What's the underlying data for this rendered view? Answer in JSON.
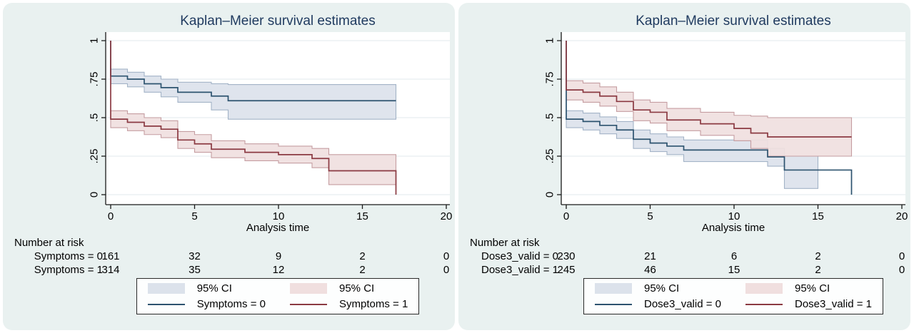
{
  "page": {
    "background": "#ffffff",
    "panel_background": "#e9f1f0",
    "plot_background": "#ffffff",
    "gridline_color": "#e6eef0",
    "axis_color": "#1a1a1a",
    "text_color": "#000000",
    "title_color": "#1f3a5f",
    "legend_border_color": "#2a2a2a",
    "legend_background": "#fdfefe"
  },
  "chart_data": [
    {
      "type": "line",
      "subtype": "kaplan-meier-step",
      "title": "Kaplan–Meier survival estimates",
      "xlabel": "Analysis time",
      "ylabel": "",
      "xlim": [
        0,
        20
      ],
      "ylim": [
        0,
        1
      ],
      "xticks": [
        0,
        5,
        10,
        15,
        20
      ],
      "yticks": [
        0,
        0.25,
        0.5,
        0.75,
        1
      ],
      "ytick_labels": [
        "0",
        ".25",
        ".5",
        ".75",
        "1"
      ],
      "grid": true,
      "legend_position": "below",
      "ci_label": "95% CI",
      "series": [
        {
          "name": "Symptoms = 0",
          "line_color": "#2d536f",
          "band_fill": "#dce2eb",
          "band_edge": "#a3b3c7",
          "t": [
            0,
            1,
            2,
            3,
            4,
            6,
            7
          ],
          "survival": [
            0.77,
            0.75,
            0.72,
            0.695,
            0.665,
            0.64,
            0.61
          ],
          "upper": [
            0.815,
            0.795,
            0.77,
            0.75,
            0.73,
            0.72,
            0.715
          ],
          "lower": [
            0.72,
            0.7,
            0.665,
            0.635,
            0.6,
            0.55,
            0.49
          ],
          "t_end": 17,
          "band_end": 17,
          "terminal_drop_to_zero": false
        },
        {
          "name": "Symptoms = 1",
          "line_color": "#8b3a42",
          "band_fill": "#f0dfdf",
          "band_edge": "#c59da1",
          "t": [
            0,
            1,
            2,
            3,
            4,
            5,
            6,
            8,
            10,
            12,
            13
          ],
          "survival": [
            0.49,
            0.47,
            0.445,
            0.425,
            0.355,
            0.33,
            0.295,
            0.275,
            0.26,
            0.235,
            0.155
          ],
          "upper": [
            0.545,
            0.525,
            0.5,
            0.48,
            0.41,
            0.39,
            0.35,
            0.33,
            0.315,
            0.3,
            0.26
          ],
          "lower": [
            0.435,
            0.415,
            0.39,
            0.37,
            0.3,
            0.275,
            0.24,
            0.22,
            0.205,
            0.175,
            0.065
          ],
          "t_end": 17,
          "band_end": 17,
          "terminal_drop_to_zero": true
        }
      ],
      "risk_table": {
        "title": "Number at risk",
        "times": [
          0,
          5,
          10,
          15,
          20
        ],
        "rows": [
          {
            "label": "Symptoms = 0",
            "values": [
              "161",
              "32",
              "9",
              "2",
              "0"
            ]
          },
          {
            "label": "Symptoms = 1",
            "values": [
              "314",
              "35",
              "12",
              "2",
              "0"
            ]
          }
        ]
      }
    },
    {
      "type": "line",
      "subtype": "kaplan-meier-step",
      "title": "Kaplan–Meier survival estimates",
      "xlabel": "Analysis time",
      "ylabel": "",
      "xlim": [
        0,
        20
      ],
      "ylim": [
        0,
        1
      ],
      "xticks": [
        0,
        5,
        10,
        15,
        20
      ],
      "yticks": [
        0,
        0.25,
        0.5,
        0.75,
        1
      ],
      "ytick_labels": [
        "0",
        ".25",
        ".5",
        ".75",
        "1"
      ],
      "grid": true,
      "legend_position": "below",
      "ci_label": "95% CI",
      "series": [
        {
          "name": "Dose3_valid = 0",
          "line_color": "#2d536f",
          "band_fill": "#dce2eb",
          "band_edge": "#a3b3c7",
          "t": [
            0,
            1,
            2,
            3,
            4,
            5,
            6,
            7,
            12,
            13
          ],
          "survival": [
            0.49,
            0.475,
            0.45,
            0.42,
            0.36,
            0.335,
            0.315,
            0.29,
            0.245,
            0.16
          ],
          "upper": [
            0.545,
            0.53,
            0.505,
            0.475,
            0.42,
            0.395,
            0.375,
            0.355,
            0.3,
            0.25
          ],
          "lower": [
            0.435,
            0.42,
            0.395,
            0.365,
            0.3,
            0.28,
            0.26,
            0.215,
            0.185,
            0.04
          ],
          "t_end": 17,
          "band_end": 15,
          "terminal_drop_to_zero": true
        },
        {
          "name": "Dose3_valid = 1",
          "line_color": "#8b3a42",
          "band_fill": "#f0dfdf",
          "band_edge": "#c59da1",
          "t": [
            0,
            1,
            2,
            3,
            4,
            5,
            6,
            8,
            10,
            11,
            12
          ],
          "survival": [
            0.68,
            0.665,
            0.64,
            0.605,
            0.55,
            0.535,
            0.485,
            0.46,
            0.43,
            0.4,
            0.375
          ],
          "upper": [
            0.74,
            0.725,
            0.7,
            0.665,
            0.615,
            0.6,
            0.56,
            0.535,
            0.515,
            0.51,
            0.5
          ],
          "lower": [
            0.615,
            0.6,
            0.575,
            0.54,
            0.48,
            0.465,
            0.415,
            0.385,
            0.35,
            0.3,
            0.25
          ],
          "t_end": 17,
          "band_end": 17,
          "terminal_drop_to_zero": false
        }
      ],
      "risk_table": {
        "title": "Number at risk",
        "times": [
          0,
          5,
          10,
          15,
          20
        ],
        "rows": [
          {
            "label": "Dose3_valid = 0",
            "values": [
              "230",
              "21",
              "6",
              "2",
              "0"
            ]
          },
          {
            "label": "Dose3_valid = 1",
            "values": [
              "245",
              "46",
              "15",
              "2",
              "0"
            ]
          }
        ]
      }
    }
  ]
}
